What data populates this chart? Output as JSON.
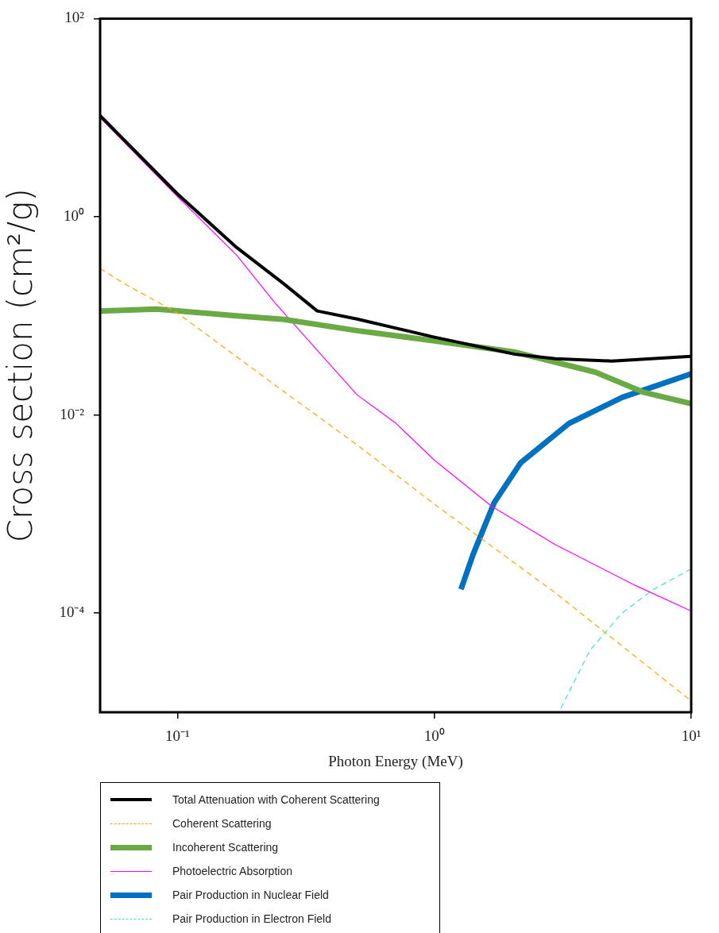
{
  "chart_data": {
    "type": "line",
    "xlabel": "Photon Energy (MeV)",
    "ylabel": "Cross section (cm²/g)",
    "log": "xy",
    "grid": false,
    "legend": "bottom",
    "marker": "none",
    "xlim": [
      0.05,
      10
    ],
    "xticks": [
      {
        "value": 0.1,
        "label": "10⁻¹"
      },
      {
        "value": 1,
        "label": "10⁰"
      },
      {
        "value": 10,
        "label": "10¹"
      }
    ],
    "ylim": [
      1e-05,
      100
    ],
    "yticks": [
      {
        "value": 0.0001,
        "label": "10⁻⁴"
      },
      {
        "value": 0.01,
        "label": "10⁻²"
      },
      {
        "value": 1,
        "label": "10⁰"
      },
      {
        "value": 100,
        "label": "10²"
      }
    ],
    "series": [
      {
        "name": "Total Attenuation with Coherent Scattering",
        "color": "#000000",
        "line_style": "solid",
        "x": [
          0.05,
          0.1,
          0.17,
          0.26,
          0.35,
          0.5,
          1,
          2.06,
          2.96,
          4.9,
          10
        ],
        "values": [
          10.5,
          1.7,
          0.49,
          0.21,
          0.112,
          0.093,
          0.061,
          0.041,
          0.037,
          0.035,
          0.039
        ]
      },
      {
        "name": "Coherent Scattering",
        "color": "#ffa500",
        "line_style": "dashed",
        "x": [
          0.05,
          0.0624,
          0.1,
          0.24,
          0.5,
          1,
          2.96,
          10
        ],
        "values": [
          0.3,
          0.21,
          0.107,
          0.02,
          0.005,
          0.00126,
          0.00016,
          1.3e-05
        ]
      },
      {
        "name": "Incoherent Scattering",
        "color": "#6aaa45",
        "line_style": "solid",
        "x": [
          0.05,
          0.083,
          0.17,
          0.26,
          0.5,
          1,
          2.07,
          4.24,
          6.5,
          10
        ],
        "values": [
          0.112,
          0.117,
          0.1,
          0.092,
          0.071,
          0.056,
          0.043,
          0.027,
          0.017,
          0.013
        ]
      },
      {
        "name": "Photoelectric Absorption",
        "color": "#ff00ff",
        "line_style": "solid",
        "x": [
          0.05,
          0.1,
          0.17,
          0.24,
          0.35,
          0.5,
          0.71,
          1,
          1.67,
          2.96,
          6.07,
          10
        ],
        "values": [
          10,
          1.6,
          0.41,
          0.135,
          0.045,
          0.016,
          0.0082,
          0.0035,
          0.0012,
          0.00049,
          0.00019,
          0.000105
        ]
      },
      {
        "name": "Pair Production in Nuclear Field",
        "color": "#0070c0",
        "line_style": "solid",
        "x": [
          1.27,
          1.42,
          1.71,
          2.17,
          3.34,
          5.37,
          10
        ],
        "values": [
          0.000174,
          0.0004,
          0.0013,
          0.0033,
          0.0082,
          0.015,
          0.026
        ]
      },
      {
        "name": "Pair Production in Electron Field",
        "color": "#40e0d0",
        "line_style": "dashed",
        "x": [
          3.11,
          4.03,
          5.37,
          7.14,
          10
        ],
        "values": [
          1.1e-05,
          4.2e-05,
          0.0001,
          0.000174,
          0.00028
        ]
      }
    ]
  }
}
